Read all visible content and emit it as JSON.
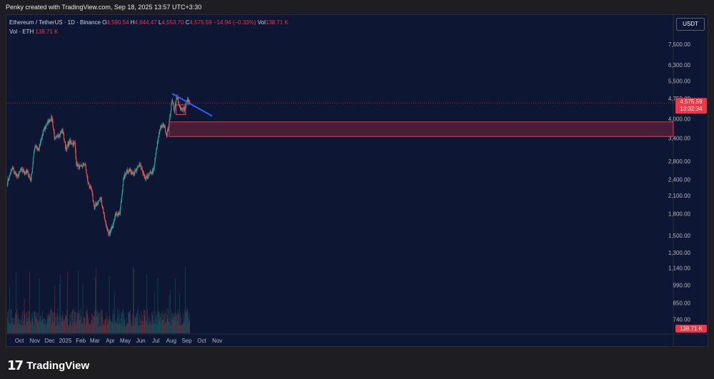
{
  "header": {
    "attribution": "Penky created with TradingView.com, Sep 18, 2025 13:57 UTC+3:30"
  },
  "legend": {
    "symbol": "Ethereum / TetherUS · 1D · Binance",
    "open_label": "O",
    "open": "4,590.54",
    "high_label": "H",
    "high": "4,644.47",
    "low_label": "L",
    "low": "4,553.70",
    "close_label": "C",
    "close": "4,575.59",
    "change": "−14.94 (−0.33%)",
    "vol_label": "Vol",
    "vol": "138.71 K",
    "vol_line_label": "Vol · ETH",
    "vol_line_value": "138.71 K"
  },
  "currency_button": "USDT",
  "price_tag": {
    "price": "4,575.59",
    "countdown": "13:32:34"
  },
  "volume_tag": "138.71 K",
  "footer": {
    "brand": "TradingView"
  },
  "colors": {
    "up": "#26a69a",
    "down": "#ef5350",
    "background": "#0d1632",
    "trendline": "#2962ff",
    "zone": "#f23645"
  },
  "chart_data": {
    "type": "candlestick",
    "scale": "log",
    "y_ticks": [
      "7,500.00",
      "6,300.00",
      "5,500.00",
      "4,750.00",
      "4,000.00",
      "3,400.00",
      "2,800.00",
      "2,400.00",
      "2,100.00",
      "1,800.00",
      "1,500.00",
      "1,300.00",
      "1,140.00",
      "990.00",
      "850.00",
      "740.00"
    ],
    "x_ticks": [
      "Oct",
      "Nov",
      "Dec",
      "2025",
      "Feb",
      "Mar",
      "Apr",
      "May",
      "Jun",
      "Jul",
      "Aug",
      "Sep",
      "Oct",
      "Nov"
    ],
    "price_path": [
      [
        "2024-09-18",
        2350
      ],
      [
        "2024-09-28",
        2650
      ],
      [
        "2024-10-08",
        2450
      ],
      [
        "2024-10-15",
        2600
      ],
      [
        "2024-10-28",
        2550
      ],
      [
        "2024-11-04",
        2400
      ],
      [
        "2024-11-12",
        3200
      ],
      [
        "2024-11-20",
        3100
      ],
      [
        "2024-11-30",
        3650
      ],
      [
        "2024-12-08",
        3900
      ],
      [
        "2024-12-16",
        4050
      ],
      [
        "2024-12-22",
        3350
      ],
      [
        "2025-01-06",
        3650
      ],
      [
        "2025-01-13",
        3100
      ],
      [
        "2025-01-20",
        3300
      ],
      [
        "2025-01-31",
        3250
      ],
      [
        "2025-02-03",
        2750
      ],
      [
        "2025-02-10",
        2650
      ],
      [
        "2025-02-20",
        2750
      ],
      [
        "2025-02-26",
        2350
      ],
      [
        "2025-03-05",
        2200
      ],
      [
        "2025-03-11",
        1900
      ],
      [
        "2025-03-24",
        2050
      ],
      [
        "2025-03-30",
        1800
      ],
      [
        "2025-04-08",
        1500
      ],
      [
        "2025-04-15",
        1600
      ],
      [
        "2025-04-22",
        1800
      ],
      [
        "2025-05-01",
        1800
      ],
      [
        "2025-05-08",
        2400
      ],
      [
        "2025-05-15",
        2600
      ],
      [
        "2025-06-01",
        2550
      ],
      [
        "2025-06-10",
        2750
      ],
      [
        "2025-06-20",
        2400
      ],
      [
        "2025-06-29",
        2500
      ],
      [
        "2025-07-08",
        2600
      ],
      [
        "2025-07-12",
        3000
      ],
      [
        "2025-07-20",
        3700
      ],
      [
        "2025-07-28",
        3800
      ],
      [
        "2025-08-03",
        3500
      ],
      [
        "2025-08-08",
        3900
      ],
      [
        "2025-08-13",
        4700
      ],
      [
        "2025-08-18",
        4300
      ],
      [
        "2025-08-23",
        4800
      ],
      [
        "2025-08-30",
        4400
      ],
      [
        "2025-09-06",
        4300
      ],
      [
        "2025-09-13",
        4650
      ],
      [
        "2025-09-18",
        4575.59
      ]
    ],
    "trendline": {
      "from": [
        "2025-08-14",
        4950
      ],
      "to": [
        "2025-11-02",
        4100
      ]
    },
    "resistance_zone": {
      "from_date": "2025-08-08",
      "low": 3450,
      "high": 3900
    },
    "consolidation_box": {
      "from_date": "2025-08-22",
      "to_date": "2025-09-10",
      "low": 4150,
      "high": 4500
    },
    "current_price": 4575.59
  }
}
